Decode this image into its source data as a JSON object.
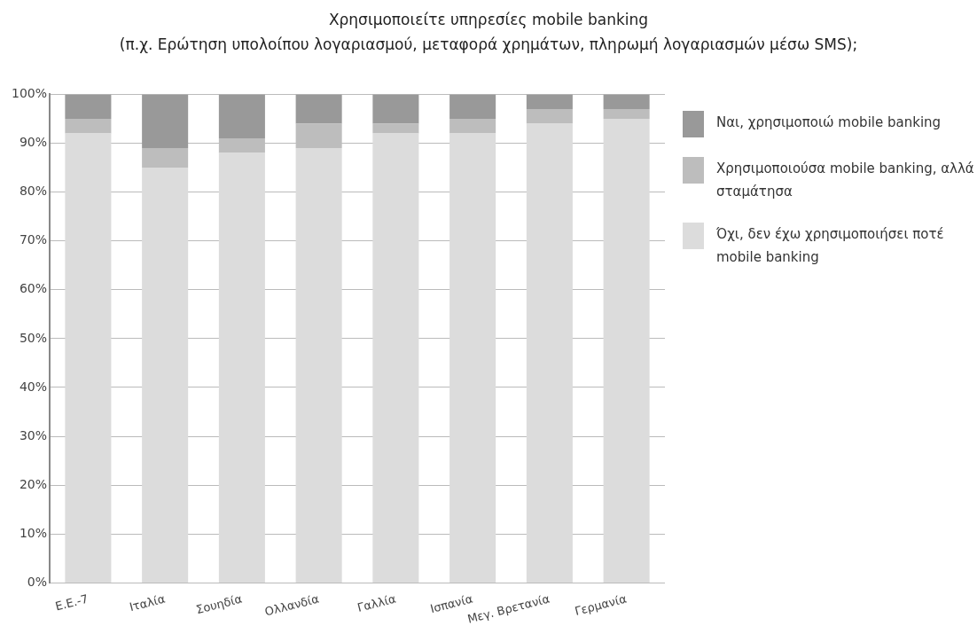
{
  "chart_data": {
    "type": "bar",
    "stacked": true,
    "title": "Χρησιμοποιείτε υπηρεσίες mobile banking",
    "subtitle": "(π.χ. Ερώτηση υπολοίπου λογαριασμού, μεταφορά χρημάτων, πληρωμή λογαριασμών μέσω SMS);",
    "categories": [
      "Ε.Ε.-7",
      "Ιταλία",
      "Σουηδία",
      "Ολλανδία",
      "Γαλλία",
      "Ισπανία",
      "Μεγ. Βρετανία",
      "Γερμανία"
    ],
    "series": [
      {
        "name": "Όχι, δεν έχω χρησιμοποιήσει ποτέ mobile banking",
        "color": "#dcdcdc",
        "values": [
          92,
          85,
          88,
          89,
          92,
          92,
          94,
          95
        ]
      },
      {
        "name": "Χρησιμοποιούσα mobile banking, αλλά σταμάτησα",
        "color": "#bdbdbd",
        "values": [
          3,
          4,
          3,
          5,
          2,
          3,
          3,
          2
        ]
      },
      {
        "name": "Ναι, χρησιμοποιώ mobile banking",
        "color": "#999999",
        "values": [
          5,
          11,
          9,
          6,
          6,
          5,
          3,
          3
        ]
      }
    ],
    "ylim": [
      0,
      100
    ],
    "yticks": [
      {
        "value": 0,
        "label": "0%"
      },
      {
        "value": 10,
        "label": "10%"
      },
      {
        "value": 20,
        "label": "20%"
      },
      {
        "value": 30,
        "label": "30%"
      },
      {
        "value": 40,
        "label": "40%"
      },
      {
        "value": 50,
        "label": "50%"
      },
      {
        "value": 60,
        "label": "60%"
      },
      {
        "value": 70,
        "label": "70%"
      },
      {
        "value": 80,
        "label": "80%"
      },
      {
        "value": 90,
        "label": "90%"
      },
      {
        "value": 100,
        "label": "100%"
      }
    ],
    "grid": "y",
    "legend": "right"
  }
}
